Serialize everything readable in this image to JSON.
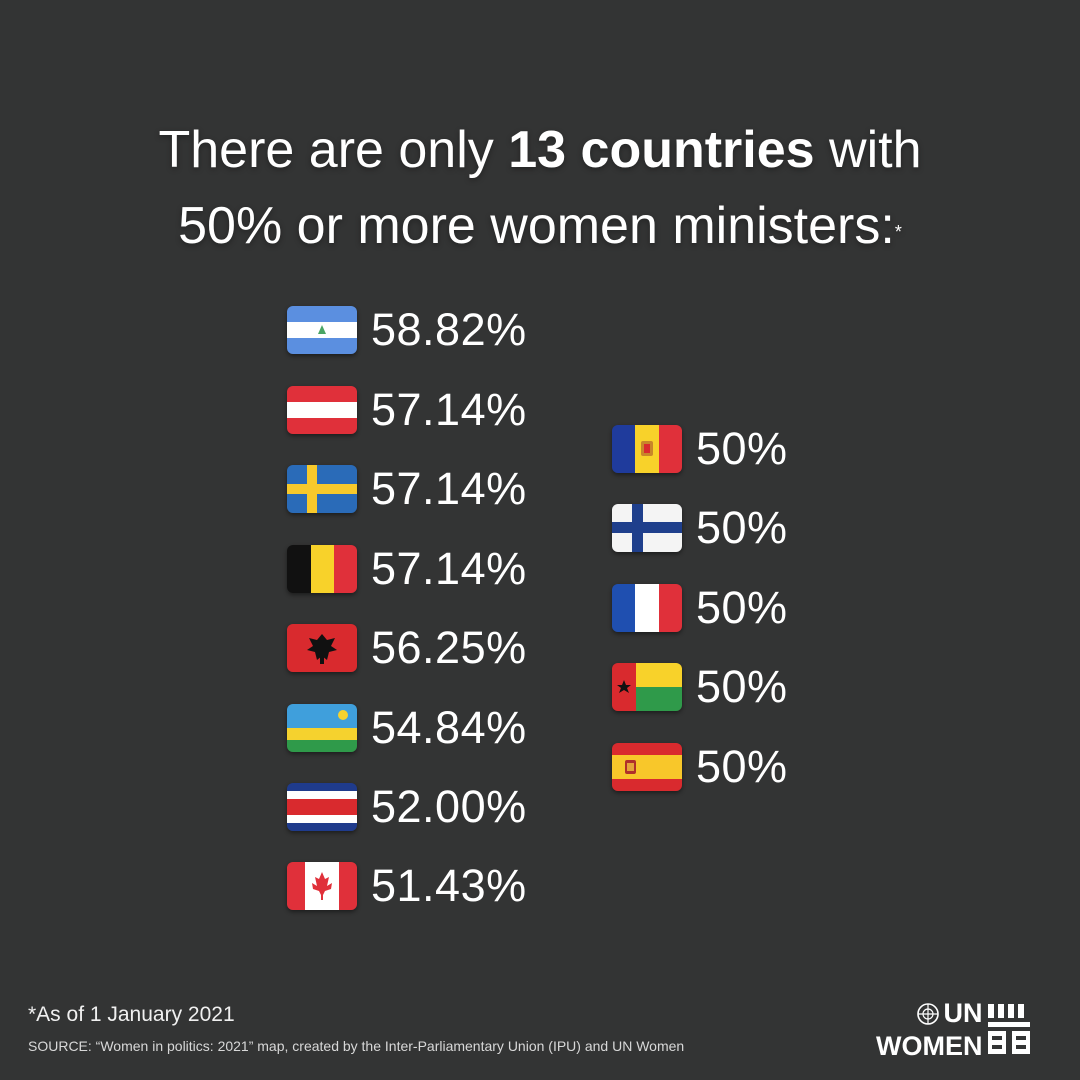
{
  "headline": {
    "prefix": "There are only ",
    "emphasis": "13 countries",
    "suffix_line1": " with",
    "line2": "50% or more women ministers:",
    "asterisk": "*"
  },
  "left_column": [
    {
      "flag": "nicaragua-flag-icon",
      "value": "58.82%"
    },
    {
      "flag": "austria-flag-icon",
      "value": "57.14%"
    },
    {
      "flag": "sweden-flag-icon",
      "value": "57.14%"
    },
    {
      "flag": "belgium-flag-icon",
      "value": "57.14%"
    },
    {
      "flag": "albania-flag-icon",
      "value": "56.25%"
    },
    {
      "flag": "rwanda-flag-icon",
      "value": "54.84%"
    },
    {
      "flag": "costa-rica-flag-icon",
      "value": "52.00%"
    },
    {
      "flag": "canada-flag-icon",
      "value": "51.43%"
    }
  ],
  "right_column": [
    {
      "flag": "andorra-flag-icon",
      "value": "50%"
    },
    {
      "flag": "finland-flag-icon",
      "value": "50%"
    },
    {
      "flag": "france-flag-icon",
      "value": "50%"
    },
    {
      "flag": "guinea-bissau-flag-icon",
      "value": "50%"
    },
    {
      "flag": "spain-flag-icon",
      "value": "50%"
    }
  ],
  "footnote": "*As of 1 January 2021",
  "source": "SOURCE:  “Women in politics: 2021” map, created by the Inter-Parliamentary Union (IPU) and UN Women",
  "logo": {
    "line1": "UN",
    "line2": "WOMEN"
  },
  "colors": {
    "background": "#333434",
    "text": "#ffffff"
  }
}
